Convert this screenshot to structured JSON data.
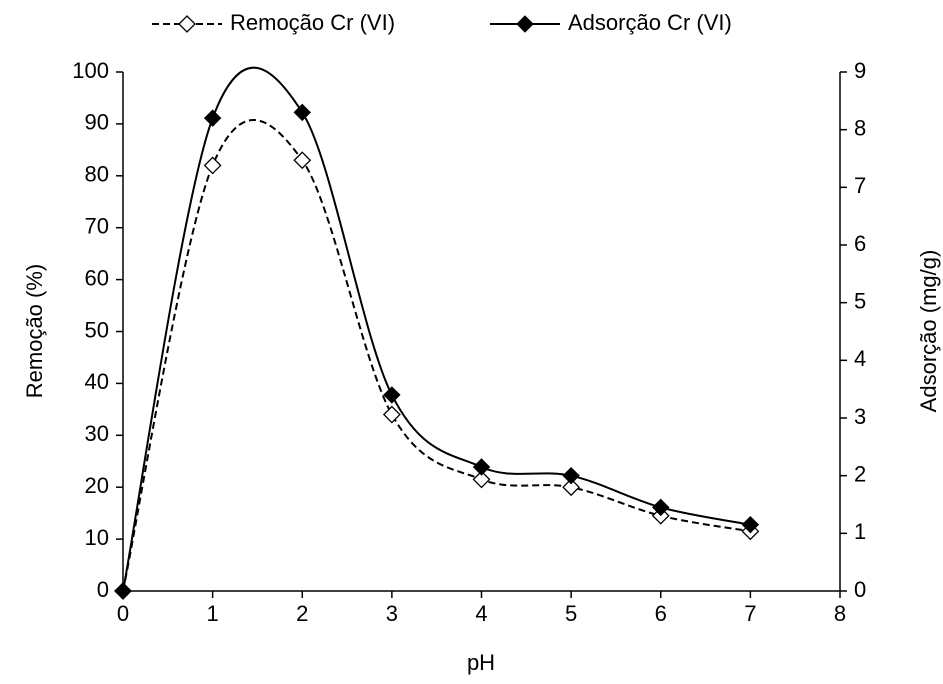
{
  "chart_data": {
    "type": "line",
    "xlabel": "pH",
    "ylabel": "Remoção (%)",
    "y2label": "Adsorção (mg/g)",
    "x": [
      0,
      1,
      2,
      3,
      4,
      5,
      6,
      7
    ],
    "series": [
      {
        "name": "Remoção Cr (VI)",
        "color": "#000000",
        "dash": true,
        "marker": "open-diamond",
        "values": [
          0,
          82,
          83,
          34,
          21.5,
          20,
          14.5,
          11.5
        ]
      },
      {
        "name": "Adsorção Cr (VI)",
        "color": "#000000",
        "dash": false,
        "marker": "filled-diamond",
        "axis": "y2",
        "values": [
          0,
          8.2,
          8.3,
          3.4,
          2.15,
          2.0,
          1.45,
          1.15
        ]
      }
    ],
    "xlim": [
      0,
      8
    ],
    "xticks": [
      0,
      1,
      2,
      3,
      4,
      5,
      6,
      7,
      8
    ],
    "ylim": [
      0,
      100
    ],
    "yticks": [
      0,
      10,
      20,
      30,
      40,
      50,
      60,
      70,
      80,
      90,
      100
    ],
    "y2lim": [
      0,
      9
    ],
    "y2ticks": [
      0,
      1,
      2,
      3,
      4,
      5,
      6,
      7,
      8,
      9
    ],
    "legend": "top",
    "smooth": true
  }
}
